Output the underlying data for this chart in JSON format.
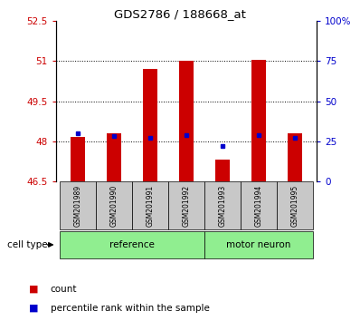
{
  "title": "GDS2786 / 188668_at",
  "samples": [
    "GSM201989",
    "GSM201990",
    "GSM201991",
    "GSM201992",
    "GSM201993",
    "GSM201994",
    "GSM201995"
  ],
  "groups": [
    "reference",
    "reference",
    "reference",
    "reference",
    "motor neuron",
    "motor neuron",
    "motor neuron"
  ],
  "bar_bottom": 46.5,
  "count_values": [
    48.15,
    48.3,
    50.7,
    51.0,
    47.3,
    51.05,
    48.3
  ],
  "percentile_values_right": [
    30,
    28,
    27,
    29,
    22,
    29,
    27
  ],
  "ylim_left": [
    46.5,
    52.5
  ],
  "ylim_right": [
    0,
    100
  ],
  "yticks_left": [
    46.5,
    48.0,
    49.5,
    51.0,
    52.5
  ],
  "ytick_labels_left": [
    "46.5",
    "48",
    "49.5",
    "51",
    "52.5"
  ],
  "yticks_right": [
    0,
    25,
    50,
    75,
    100
  ],
  "ytick_labels_right": [
    "0",
    "25",
    "50",
    "75",
    "100%"
  ],
  "bar_color": "#CC0000",
  "percentile_color": "#0000CC",
  "bar_width": 0.4,
  "grid_lines": [
    48.0,
    49.5,
    51.0
  ],
  "legend_count": "count",
  "legend_percentile": "percentile rank within the sample",
  "cell_type_label": "cell type",
  "background_color": "#ffffff",
  "tick_label_color_left": "#CC0000",
  "tick_label_color_right": "#0000CC",
  "label_box_color": "#C8C8C8",
  "group_box_color": "#90EE90"
}
